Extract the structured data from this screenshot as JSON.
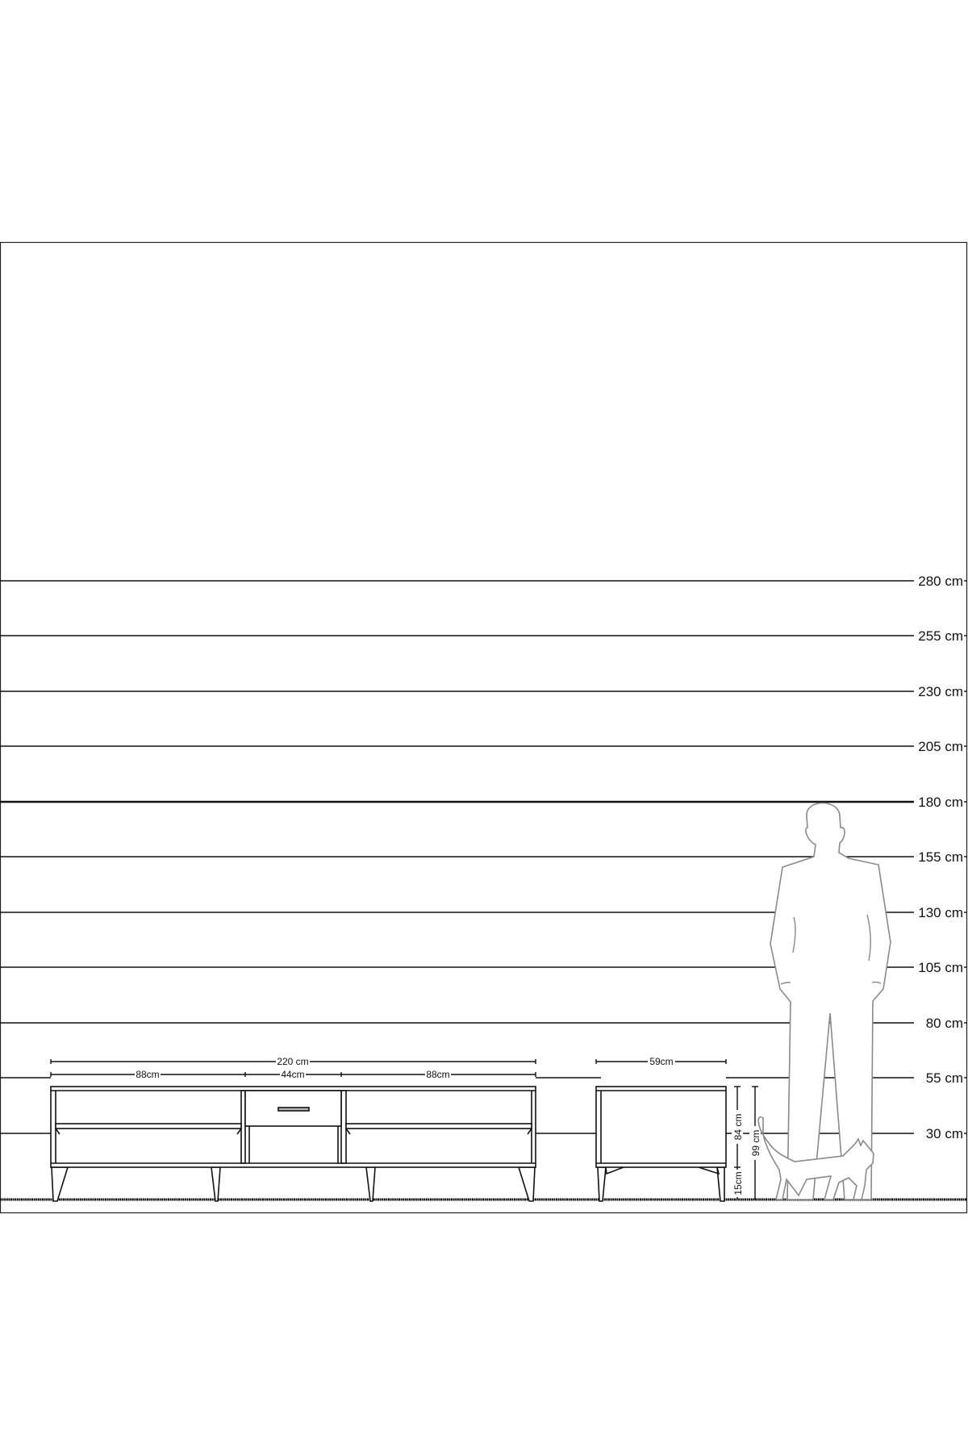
{
  "scale": {
    "unit": "cm",
    "levels": [
      {
        "value": 280,
        "label": "280 cm"
      },
      {
        "value": 255,
        "label": "255 cm"
      },
      {
        "value": 230,
        "label": "230 cm"
      },
      {
        "value": 205,
        "label": "205 cm"
      },
      {
        "value": 180,
        "label": "180 cm"
      },
      {
        "value": 155,
        "label": "155 cm"
      },
      {
        "value": 130,
        "label": "130 cm"
      },
      {
        "value": 105,
        "label": "105 cm"
      },
      {
        "value": 80,
        "label": "80 cm"
      },
      {
        "value": 55,
        "label": "55 cm"
      },
      {
        "value": 30,
        "label": "30 cm"
      }
    ]
  },
  "tv_unit": {
    "total_width": "220 cm",
    "left_section": "88cm",
    "middle_section": "44cm",
    "right_section": "88cm"
  },
  "side_unit": {
    "width": "59cm",
    "body_height": "84 cm",
    "leg_height": "15cm",
    "total_height": "99 cm"
  },
  "colors": {
    "lines": "#111111",
    "figures": "#8a8a8a"
  }
}
